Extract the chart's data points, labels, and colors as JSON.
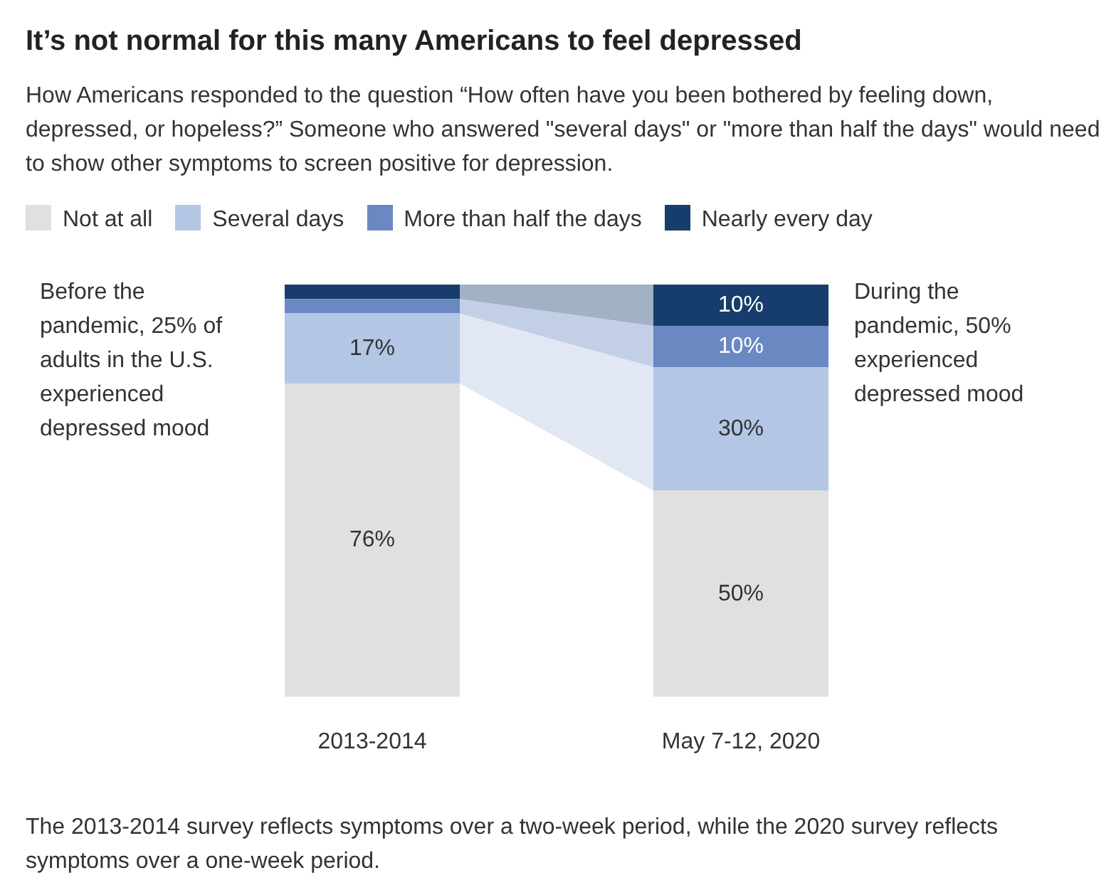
{
  "chart_data": {
    "type": "bar",
    "stacked": true,
    "title": "It’s not normal for this many Americans to feel depressed",
    "subtitle": "How Americans responded to the question “How often have you been bothered by feeling down, depressed, or hopeless?” Someone who answered \"several days\" or \"more than half the days\" would need to show other symptoms to screen positive for depression.",
    "categories": [
      "2013-2014",
      "May 7-12, 2020"
    ],
    "series": [
      {
        "name": "Not at all",
        "color": "#e0e0e0",
        "values": [
          76,
          50
        ],
        "value_labels": [
          "76%",
          "50%"
        ]
      },
      {
        "name": "Several days",
        "color": "#b3c6e4",
        "values": [
          17,
          30
        ],
        "value_labels": [
          "17%",
          "30%"
        ]
      },
      {
        "name": "More than half the days",
        "color": "#6a88c2",
        "values": [
          3.5,
          10
        ],
        "value_labels": [
          null,
          "10%"
        ]
      },
      {
        "name": "Nearly every day",
        "color": "#163d6b",
        "values": [
          3.5,
          10
        ],
        "value_labels": [
          null,
          "10%"
        ]
      }
    ],
    "legend": "top",
    "annotations": [
      "Before the pandemic, 25% of adults in the U.S. experienced depressed mood",
      "During the pandemic, 50% experienced depressed mood",
      "The 2013-2014 survey reflects symptoms over a two-week period, while the 2020 survey reflects symptoms over a one-week period."
    ]
  }
}
